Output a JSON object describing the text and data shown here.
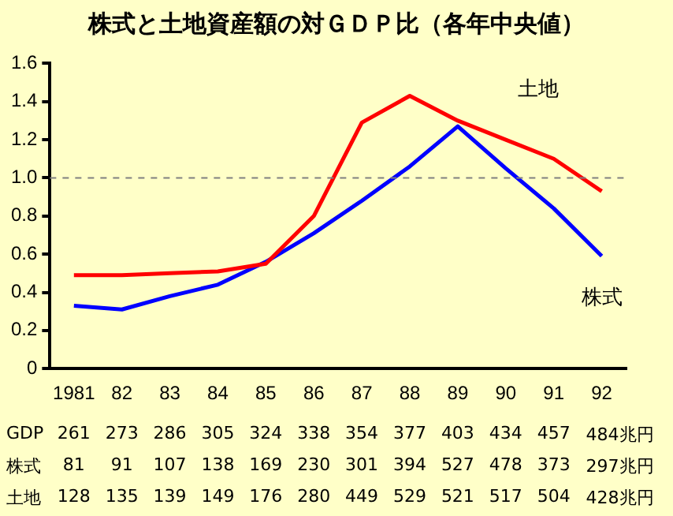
{
  "chart_data": {
    "type": "line",
    "title": "株式と土地資産額の対ＧＤＰ比（各年中央値）",
    "categories": [
      "1981",
      "82",
      "83",
      "84",
      "85",
      "86",
      "87",
      "88",
      "89",
      "90",
      "91",
      "92"
    ],
    "series": [
      {
        "name": "土地",
        "color": "#ff0000",
        "values": [
          0.49,
          0.49,
          0.5,
          0.51,
          0.55,
          0.8,
          1.29,
          1.43,
          1.3,
          1.2,
          1.1,
          0.93
        ]
      },
      {
        "name": "株式",
        "color": "#0000ff",
        "values": [
          0.33,
          0.31,
          0.38,
          0.44,
          0.56,
          0.71,
          0.88,
          1.06,
          1.27,
          1.05,
          0.84,
          0.59
        ]
      }
    ],
    "ylim": [
      0,
      1.6
    ],
    "yticks": [
      0,
      0.2,
      0.4,
      0.6,
      0.8,
      {
        "value": 1,
        "label": "1.0"
      },
      1.2,
      1.4,
      1.6
    ],
    "grid": false,
    "legend": false,
    "marker": "none",
    "line_style": "solid",
    "ref_lines": [
      {
        "axis": "y",
        "value": 1,
        "color": "#808080",
        "line_style": "dashed"
      }
    ],
    "annotations": [
      "GDP 261 273 286 305 324 338 354 377 403 434 457 484兆円",
      "株式 81 91 107 138 169 230 301 394 527 478 373 297兆円",
      "土地 128 135 139 149 176 280 449 529 521 517 504 428兆円"
    ]
  }
}
